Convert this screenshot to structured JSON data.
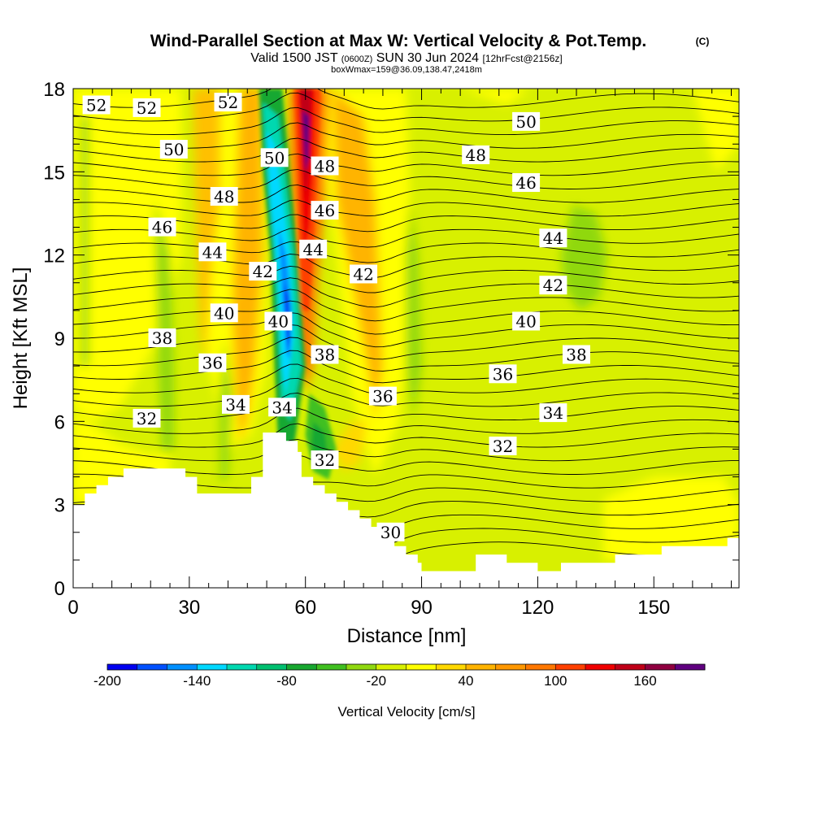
{
  "chart_data": {
    "type": "heatmap",
    "title": "Wind-Parallel Section at Max W: Vertical Velocity & Pot.Temp.",
    "title_mark": "(C)",
    "subtitle_parts": [
      "Valid 1500 JST ",
      "(0600Z)",
      " SUN 30 Jun 2024 ",
      "[12hrFcst@2156z]"
    ],
    "subtitle2": "boxWmax=159@36.09,138.47,2418m",
    "xlabel": "Distance [nm]",
    "ylabel": "Height [Kft MSL]",
    "xlim": [
      0,
      172
    ],
    "ylim": [
      0,
      18
    ],
    "x_ticks": [
      "0",
      "30",
      "60",
      "90",
      "120",
      "150"
    ],
    "y_ticks": [
      "0",
      "3",
      "6",
      "9",
      "12",
      "15",
      "18"
    ],
    "colorbar": {
      "label": "Vertical Velocity [cm/s]",
      "tick_labels": [
        "-200",
        "-140",
        "-80",
        "-20",
        "40",
        "100",
        "160"
      ],
      "colors": [
        "#0000f0",
        "#0050ff",
        "#0090ff",
        "#00d8ff",
        "#00d8b0",
        "#00c070",
        "#18a830",
        "#40c020",
        "#90d810",
        "#d8f000",
        "#ffff00",
        "#ffd800",
        "#ffb400",
        "#ff9800",
        "#ff7800",
        "#ff4000",
        "#f00000",
        "#c00018",
        "#900040",
        "#600080"
      ]
    },
    "vertical_velocity_features": [
      {
        "kind": "downdraft",
        "x": 55,
        "y": 9,
        "min": -200
      },
      {
        "kind": "updraft",
        "x": 60,
        "y": 16,
        "max": 180
      },
      {
        "kind": "updraft_band",
        "x": 76,
        "y": 12,
        "max": 60
      },
      {
        "kind": "updraft_band",
        "x": 42,
        "y": 13,
        "max": 60
      },
      {
        "kind": "weak_sink",
        "x": 131,
        "y": 12.5,
        "min": -20
      }
    ],
    "theta_contours": [
      {
        "label": "52",
        "x": 6,
        "y": 17.4
      },
      {
        "label": "52",
        "x": 19,
        "y": 17.3
      },
      {
        "label": "52",
        "x": 40,
        "y": 17.5
      },
      {
        "label": "50",
        "x": 26,
        "y": 15.8
      },
      {
        "label": "50",
        "x": 52,
        "y": 15.5
      },
      {
        "label": "50",
        "x": 117,
        "y": 16.8
      },
      {
        "label": "48",
        "x": 39,
        "y": 14.1
      },
      {
        "label": "48",
        "x": 65,
        "y": 15.2
      },
      {
        "label": "48",
        "x": 104,
        "y": 15.6
      },
      {
        "label": "46",
        "x": 23,
        "y": 13.0
      },
      {
        "label": "46",
        "x": 65,
        "y": 13.6
      },
      {
        "label": "46",
        "x": 117,
        "y": 14.6
      },
      {
        "label": "44",
        "x": 36,
        "y": 12.1
      },
      {
        "label": "44",
        "x": 62,
        "y": 12.2
      },
      {
        "label": "44",
        "x": 124,
        "y": 12.6
      },
      {
        "label": "42",
        "x": 49,
        "y": 11.4
      },
      {
        "label": "42",
        "x": 75,
        "y": 11.3
      },
      {
        "label": "42",
        "x": 124,
        "y": 10.9
      },
      {
        "label": "40",
        "x": 39,
        "y": 9.9
      },
      {
        "label": "40",
        "x": 53,
        "y": 9.6
      },
      {
        "label": "40",
        "x": 117,
        "y": 9.6
      },
      {
        "label": "38",
        "x": 23,
        "y": 9.0
      },
      {
        "label": "38",
        "x": 65,
        "y": 8.4
      },
      {
        "label": "38",
        "x": 130,
        "y": 8.4
      },
      {
        "label": "36",
        "x": 36,
        "y": 8.1
      },
      {
        "label": "36",
        "x": 80,
        "y": 6.9
      },
      {
        "label": "36",
        "x": 111,
        "y": 7.7
      },
      {
        "label": "34",
        "x": 42,
        "y": 6.6
      },
      {
        "label": "34",
        "x": 54,
        "y": 6.5
      },
      {
        "label": "34",
        "x": 124,
        "y": 6.3
      },
      {
        "label": "32",
        "x": 19,
        "y": 6.1
      },
      {
        "label": "32",
        "x": 65,
        "y": 4.6
      },
      {
        "label": "32",
        "x": 111,
        "y": 5.1
      },
      {
        "label": "30",
        "x": 82,
        "y": 2.0
      }
    ],
    "terrain": [
      [
        0,
        3
      ],
      [
        3,
        3
      ],
      [
        3,
        3.4
      ],
      [
        6,
        3.4
      ],
      [
        6,
        3.7
      ],
      [
        9,
        3.7
      ],
      [
        9,
        4.0
      ],
      [
        13,
        4.0
      ],
      [
        13,
        4.3
      ],
      [
        29,
        4.3
      ],
      [
        29,
        4.0
      ],
      [
        32,
        4.0
      ],
      [
        32,
        3.4
      ],
      [
        46,
        3.4
      ],
      [
        46,
        4.0
      ],
      [
        49,
        4.0
      ],
      [
        49,
        5.6
      ],
      [
        55,
        5.6
      ],
      [
        55,
        5.3
      ],
      [
        58,
        5.3
      ],
      [
        58,
        4.9
      ],
      [
        59,
        4.9
      ],
      [
        59,
        4.0
      ],
      [
        62,
        4.0
      ],
      [
        62,
        3.7
      ],
      [
        65,
        3.7
      ],
      [
        65,
        3.4
      ],
      [
        68,
        3.4
      ],
      [
        68,
        3.1
      ],
      [
        71,
        3.1
      ],
      [
        71,
        2.8
      ],
      [
        74,
        2.8
      ],
      [
        74,
        2.5
      ],
      [
        77,
        2.5
      ],
      [
        77,
        2.2
      ],
      [
        80,
        2.2
      ],
      [
        80,
        1.8
      ],
      [
        83,
        1.8
      ],
      [
        83,
        1.5
      ],
      [
        86,
        1.5
      ],
      [
        86,
        1.2
      ],
      [
        89,
        1.2
      ],
      [
        89,
        0.9
      ],
      [
        90,
        0.9
      ],
      [
        90,
        0.6
      ],
      [
        104,
        0.6
      ],
      [
        104,
        1.2
      ],
      [
        112,
        1.2
      ],
      [
        112,
        0.9
      ],
      [
        120,
        0.9
      ],
      [
        120,
        0.6
      ],
      [
        126,
        0.6
      ],
      [
        126,
        0.9
      ],
      [
        140,
        0.9
      ],
      [
        140,
        1.2
      ],
      [
        152,
        1.2
      ],
      [
        152,
        1.5
      ],
      [
        169,
        1.5
      ],
      [
        169,
        1.8
      ],
      [
        173,
        1.8
      ],
      [
        173,
        0
      ],
      [
        0,
        0
      ]
    ]
  }
}
